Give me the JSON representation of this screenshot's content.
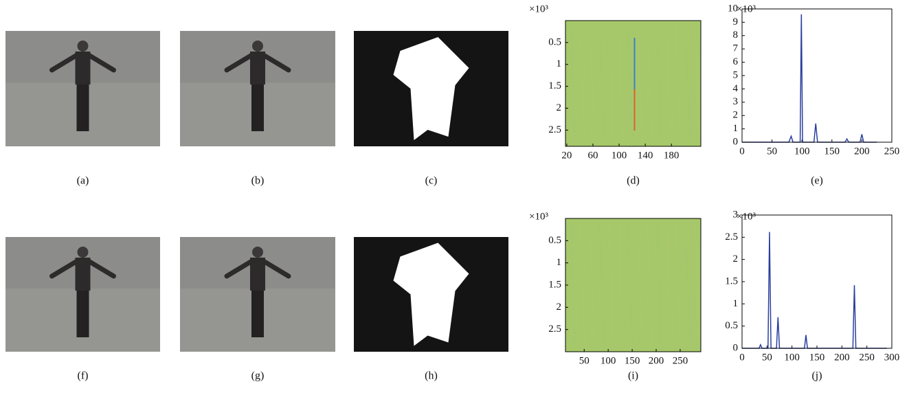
{
  "figure": {
    "panels": [
      {
        "label": "(a)",
        "type": "photo"
      },
      {
        "label": "(b)",
        "type": "photo"
      },
      {
        "label": "(c)",
        "type": "mask"
      },
      {
        "label": "(d)",
        "type": "heatmap",
        "multiplier": "×10³",
        "xlim": [
          18,
          225
        ],
        "ylim": [
          0,
          2.87
        ],
        "xticks": [
          20,
          60,
          100,
          140,
          180
        ],
        "yticks": [
          0.5,
          1,
          1.5,
          2,
          2.5
        ]
      },
      {
        "label": "(e)",
        "type": "line",
        "multiplier": "×10³",
        "xlim": [
          0,
          250
        ],
        "ylim": [
          0,
          10
        ],
        "xticks": [
          0,
          50,
          100,
          150,
          200,
          250
        ],
        "yticks": [
          0,
          1,
          2,
          3,
          4,
          5,
          6,
          7,
          8,
          9,
          10
        ],
        "color": "#2a3f9d",
        "x": [
          0,
          78,
          82,
          85,
          97,
          99,
          101,
          120,
          123,
          126,
          172,
          175,
          178,
          197,
          200,
          203,
          225
        ],
        "values": [
          0,
          0,
          0.45,
          0,
          0,
          9.6,
          0,
          0,
          1.4,
          0,
          0,
          0.25,
          0,
          0,
          0.6,
          0,
          0
        ]
      },
      {
        "label": "(f)",
        "type": "photo"
      },
      {
        "label": "(g)",
        "type": "photo"
      },
      {
        "label": "(h)",
        "type": "mask"
      },
      {
        "label": "(i)",
        "type": "heatmap",
        "multiplier": "×10³",
        "xlim": [
          11,
          293
        ],
        "ylim": [
          0,
          3
        ],
        "xticks": [
          50,
          100,
          150,
          200,
          250
        ],
        "yticks": [
          0.5,
          1,
          1.5,
          2,
          2.5
        ]
      },
      {
        "label": "(j)",
        "type": "line",
        "multiplier": "×10³",
        "xlim": [
          0,
          300
        ],
        "ylim": [
          0,
          3
        ],
        "xticks": [
          0,
          50,
          100,
          150,
          200,
          250,
          300
        ],
        "yticks": [
          0,
          0.5,
          1,
          1.5,
          2,
          2.5,
          3
        ],
        "color": "#2a3f9d",
        "x": [
          0,
          34,
          37,
          40,
          52,
          55,
          58,
          69,
          72,
          75,
          125,
          128,
          131,
          222,
          225,
          228,
          290
        ],
        "values": [
          0,
          0,
          0.08,
          0,
          0,
          2.62,
          0,
          0,
          0.7,
          0,
          0,
          0.3,
          0,
          0,
          1.42,
          0,
          0
        ]
      }
    ]
  }
}
